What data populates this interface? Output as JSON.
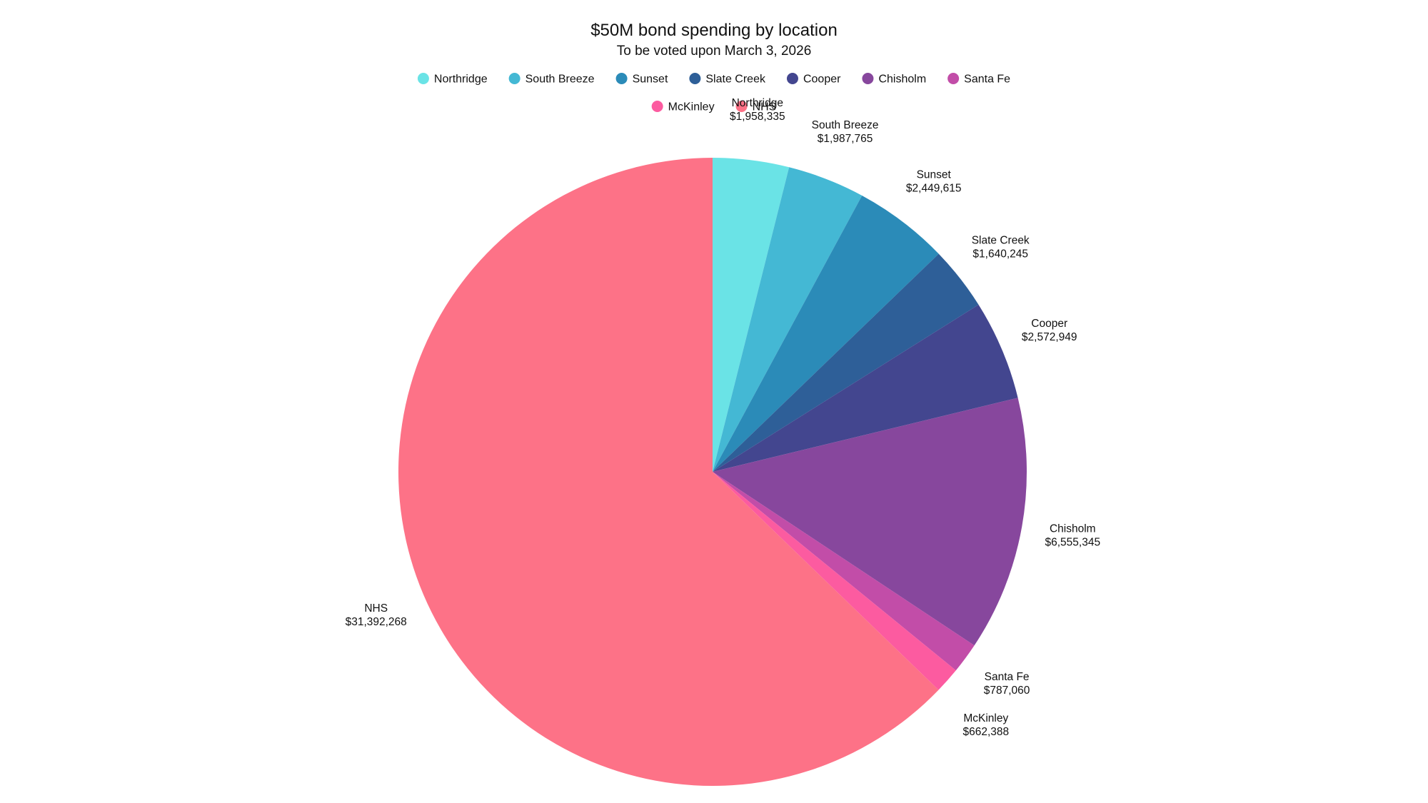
{
  "chart_data": {
    "type": "pie",
    "title": "$50M bond spending by location",
    "subtitle": "To be voted upon March 3, 2026",
    "legend_position": "top",
    "start_angle_deg": 0,
    "direction": "clockwise",
    "slices": [
      {
        "name": "Northridge",
        "value": 1958335,
        "label": "$1,958,335",
        "color": "#6ae3e6"
      },
      {
        "name": "South Breeze",
        "value": 1987765,
        "label": "$1,987,765",
        "color": "#44b8d4"
      },
      {
        "name": "Sunset",
        "value": 2449615,
        "label": "$2,449,615",
        "color": "#2b8bb8"
      },
      {
        "name": "Slate Creek",
        "value": 1640245,
        "label": "$1,640,245",
        "color": "#2e5f98"
      },
      {
        "name": "Cooper",
        "value": 2572949,
        "label": "$2,572,949",
        "color": "#43468f"
      },
      {
        "name": "Chisholm",
        "value": 6555345,
        "label": "$6,555,345",
        "color": "#87479d"
      },
      {
        "name": "Santa Fe",
        "value": 787060,
        "label": "$787,060",
        "color": "#c24da8"
      },
      {
        "name": "McKinley",
        "value": 662388,
        "label": "$662,388",
        "color": "#fc5ba0"
      },
      {
        "name": "NHS",
        "value": 31392268,
        "label": "$31,392,268",
        "color": "#fd7287"
      }
    ]
  }
}
